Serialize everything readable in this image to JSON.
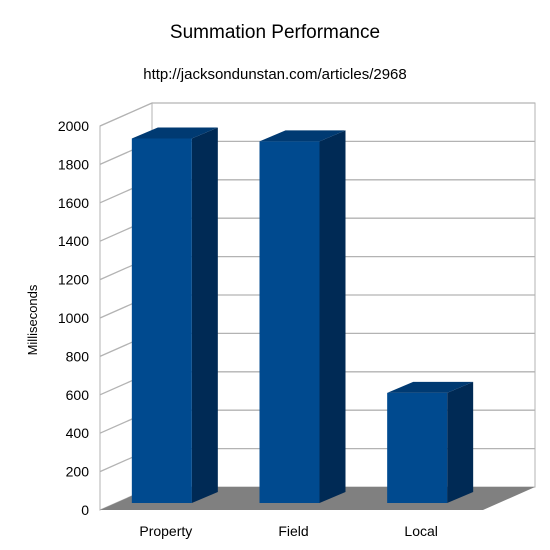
{
  "chart_data": {
    "type": "bar",
    "title": "Summation Performance",
    "subtitle": "http://jacksondunstan.com/articles/2968",
    "xlabel": "",
    "ylabel": "Milliseconds",
    "categories": [
      "Property",
      "Field",
      "Local"
    ],
    "series": [
      {
        "values": [
          1935,
          1920,
          610
        ]
      }
    ],
    "ylim": [
      0,
      2000
    ],
    "yticks": [
      0,
      200,
      400,
      600,
      800,
      1000,
      1200,
      1400,
      1600,
      1800,
      2000
    ],
    "grid": true,
    "legend": "none",
    "style": "3d",
    "colors": {
      "bar_front": "#004a8f",
      "bar_side": "#002a55",
      "bar_top": "#003a72",
      "floor": "#808080",
      "wall": "#ffffff",
      "grid": "#b3b3b3"
    }
  }
}
